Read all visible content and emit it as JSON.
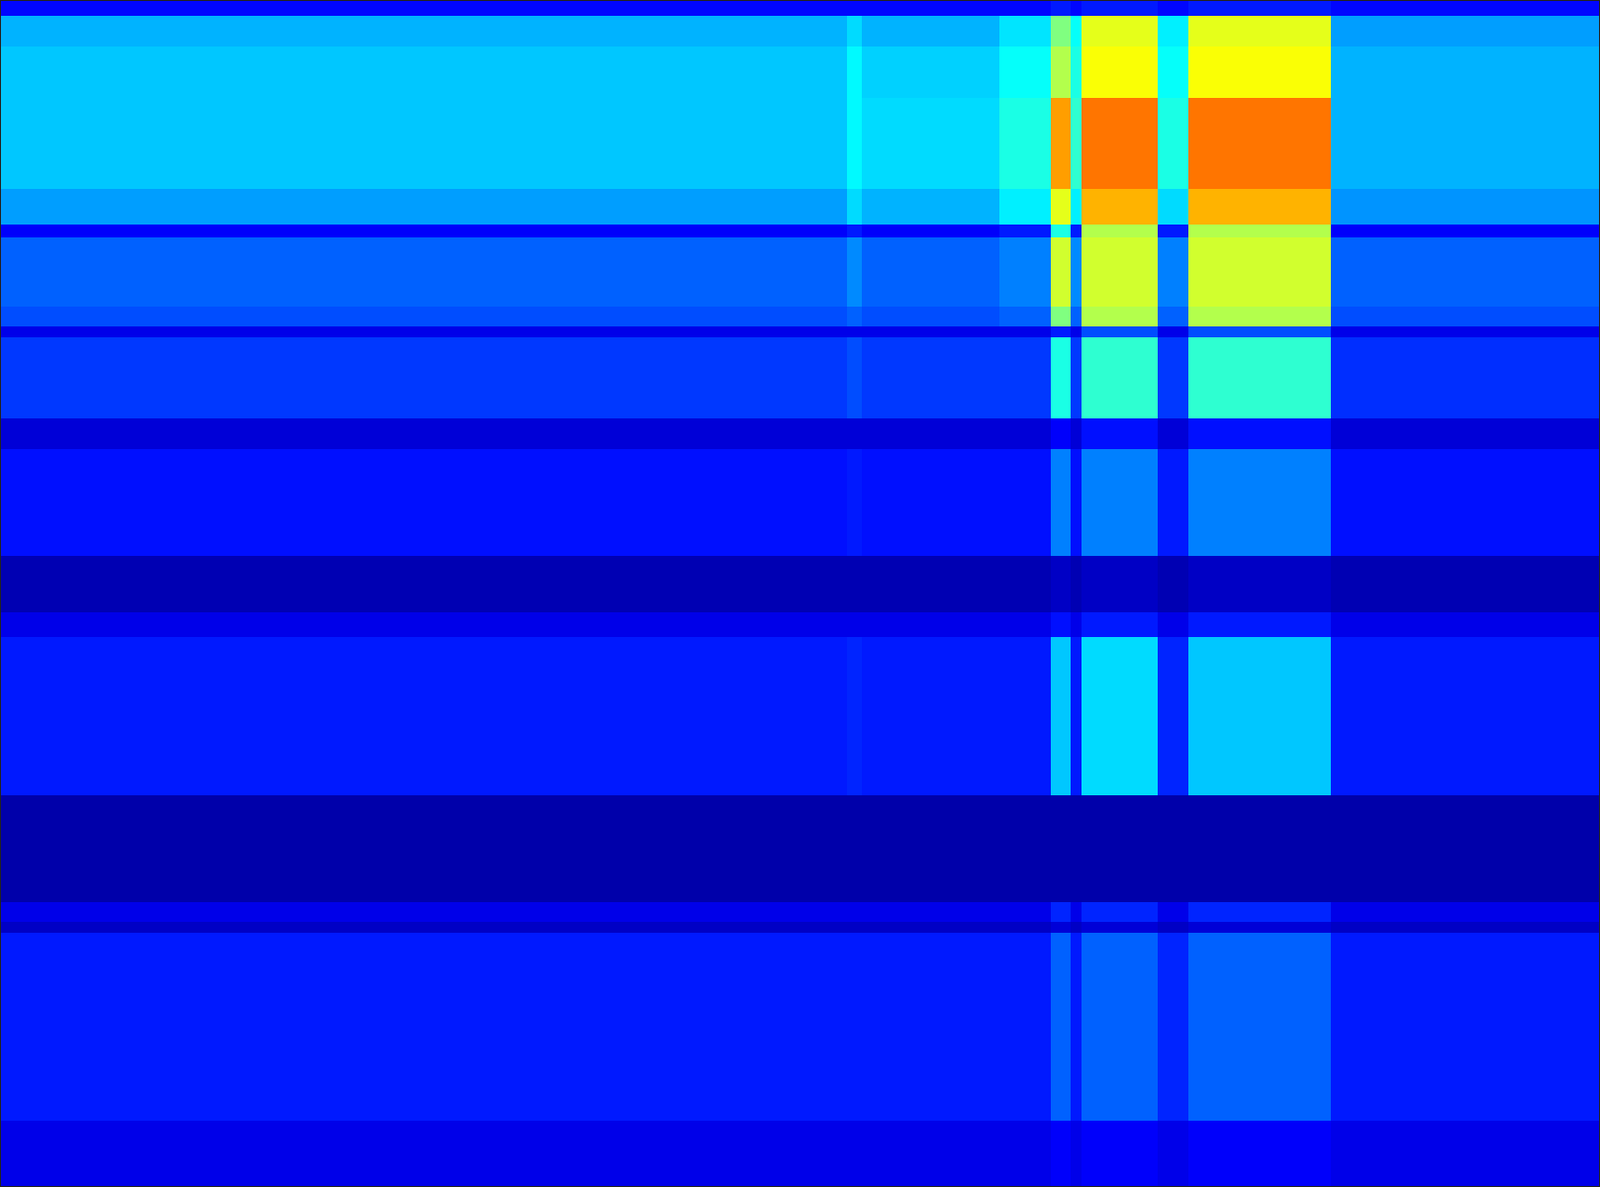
{
  "chart_data": {
    "type": "heatmap",
    "color": "jet",
    "tick_labels": false,
    "grid": false,
    "x": [
      0,
      830,
      845,
      980,
      1030,
      1050,
      1060,
      1135,
      1165,
      1305,
      1568
    ],
    "y": [
      0,
      15,
      45,
      95,
      185,
      220,
      232,
      300,
      320,
      330,
      410,
      440,
      545,
      600,
      625,
      780,
      885,
      905,
      915,
      1100,
      1164
    ],
    "xlim": [
      0,
      1568
    ],
    "ylim": [
      1164,
      0
    ],
    "zlim": [
      0,
      1
    ],
    "z": [
      [
        0.13,
        0.13,
        0.13,
        0.13,
        0.15,
        0.13,
        0.15,
        0.13,
        0.15,
        0.13
      ],
      [
        0.3,
        0.34,
        0.3,
        0.35,
        0.5,
        0.38,
        0.6,
        0.36,
        0.6,
        0.28
      ],
      [
        0.32,
        0.37,
        0.33,
        0.38,
        0.55,
        0.4,
        0.62,
        0.38,
        0.62,
        0.3
      ],
      [
        0.32,
        0.37,
        0.34,
        0.4,
        0.72,
        0.42,
        0.76,
        0.4,
        0.76,
        0.3
      ],
      [
        0.28,
        0.34,
        0.3,
        0.36,
        0.6,
        0.36,
        0.7,
        0.34,
        0.7,
        0.27
      ],
      [
        0.12,
        0.15,
        0.12,
        0.15,
        0.4,
        0.15,
        0.55,
        0.15,
        0.55,
        0.12
      ],
      [
        0.22,
        0.26,
        0.22,
        0.25,
        0.58,
        0.26,
        0.58,
        0.25,
        0.58,
        0.22
      ],
      [
        0.2,
        0.22,
        0.2,
        0.22,
        0.5,
        0.22,
        0.55,
        0.22,
        0.55,
        0.2
      ],
      [
        0.1,
        0.1,
        0.1,
        0.1,
        0.15,
        0.1,
        0.2,
        0.1,
        0.2,
        0.1
      ],
      [
        0.18,
        0.2,
        0.18,
        0.18,
        0.4,
        0.18,
        0.42,
        0.18,
        0.42,
        0.17
      ],
      [
        0.08,
        0.08,
        0.08,
        0.08,
        0.12,
        0.08,
        0.14,
        0.08,
        0.14,
        0.08
      ],
      [
        0.14,
        0.15,
        0.14,
        0.14,
        0.25,
        0.14,
        0.25,
        0.15,
        0.25,
        0.14
      ],
      [
        0.04,
        0.04,
        0.04,
        0.04,
        0.06,
        0.04,
        0.06,
        0.04,
        0.06,
        0.04
      ],
      [
        0.1,
        0.1,
        0.1,
        0.1,
        0.14,
        0.1,
        0.15,
        0.1,
        0.15,
        0.1
      ],
      [
        0.15,
        0.16,
        0.15,
        0.15,
        0.32,
        0.15,
        0.34,
        0.16,
        0.32,
        0.15
      ],
      [
        0.03,
        0.03,
        0.03,
        0.03,
        0.03,
        0.03,
        0.03,
        0.03,
        0.03,
        0.03
      ],
      [
        0.1,
        0.1,
        0.1,
        0.1,
        0.16,
        0.1,
        0.16,
        0.1,
        0.16,
        0.1
      ],
      [
        0.06,
        0.06,
        0.06,
        0.06,
        0.08,
        0.06,
        0.08,
        0.06,
        0.08,
        0.06
      ],
      [
        0.15,
        0.15,
        0.15,
        0.15,
        0.22,
        0.15,
        0.22,
        0.16,
        0.22,
        0.15
      ],
      [
        0.1,
        0.1,
        0.1,
        0.1,
        0.12,
        0.1,
        0.12,
        0.1,
        0.12,
        0.1
      ]
    ]
  }
}
